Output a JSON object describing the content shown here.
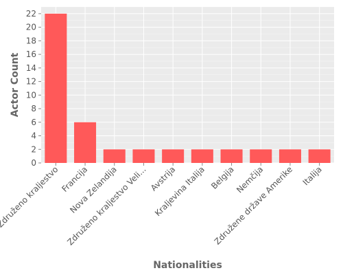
{
  "chart_data": {
    "type": "bar",
    "title": "",
    "xlabel": "Nationalities",
    "ylabel": "Actor Count",
    "categories": [
      "Združeno kraljestvo",
      "Francija",
      "Nova Zelandija",
      "Združeno kraljestvo Veli...",
      "Avstrija",
      "Kraljevina Italija",
      "Belgija",
      "Nemčija",
      "Združene države Amerike",
      "Italija"
    ],
    "values": [
      22,
      6,
      2,
      2,
      2,
      2,
      2,
      2,
      2,
      2
    ],
    "ylim": [
      0,
      23
    ],
    "yticks": [
      0,
      2,
      4,
      6,
      8,
      10,
      12,
      14,
      16,
      18,
      20,
      22
    ],
    "grid": true,
    "legend": "none",
    "colors": {
      "bar": "#FF5959",
      "panel": "#EBEBEB",
      "grid": "#FFFFFF",
      "text": "#555555"
    }
  }
}
